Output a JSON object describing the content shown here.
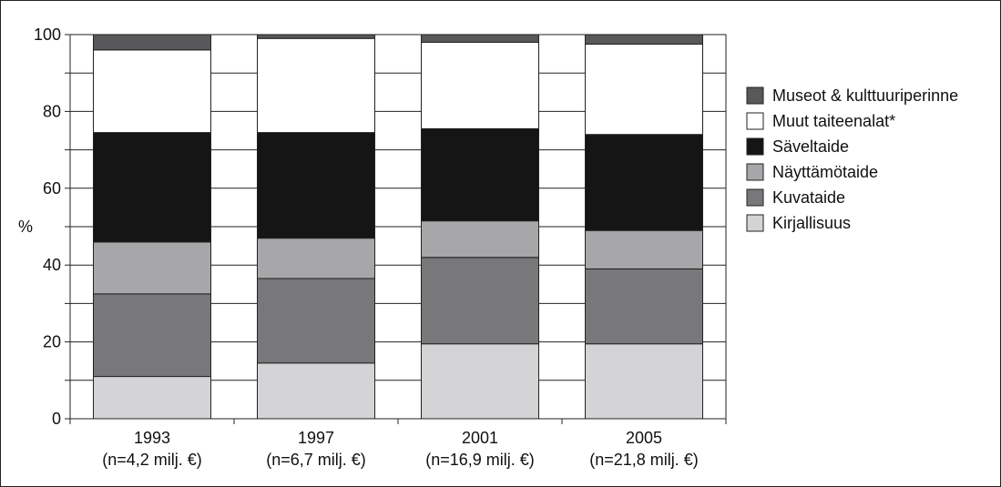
{
  "chart_data": {
    "type": "bar",
    "stacked": true,
    "ylabel": "%",
    "ylim": [
      0,
      100
    ],
    "yticks": [
      0,
      20,
      40,
      60,
      80,
      100
    ],
    "grid": true,
    "legend_position": "right",
    "categories": [
      {
        "label": "1993",
        "sublabel": "(n=4,2 milj. €)"
      },
      {
        "label": "1997",
        "sublabel": "(n=6,7 milj. €)"
      },
      {
        "label": "2001",
        "sublabel": "(n=16,9 milj. €)"
      },
      {
        "label": "2005",
        "sublabel": "(n=21,8 milj. €)"
      }
    ],
    "series": [
      {
        "name": "Kirjallisuus",
        "color": "#d4d4d6",
        "values": [
          11,
          14.5,
          19.5,
          19.5
        ]
      },
      {
        "name": "Kuvataide",
        "color": "#78787a",
        "values": [
          21.5,
          22,
          22.5,
          19.5
        ]
      },
      {
        "name": "Näyttämötaide",
        "color": "#a7a7a9",
        "values": [
          13.5,
          10.5,
          9.5,
          10
        ]
      },
      {
        "name": "Säveltaide",
        "color": "#151515",
        "values": [
          28.5,
          27.5,
          24,
          25
        ]
      },
      {
        "name": "Muut taiteenalat*",
        "color": "#ffffff",
        "values": [
          21.5,
          24.5,
          22.5,
          23.5
        ]
      },
      {
        "name": "Museot & kulttuuriperinne",
        "color": "#58585a",
        "values": [
          4,
          1,
          2,
          2.5
        ]
      }
    ],
    "legend_order": [
      "Museot & kulttuuriperinne",
      "Muut taiteenalat*",
      "Säveltaide",
      "Näyttämötaide",
      "Kuvataide",
      "Kirjallisuus"
    ]
  }
}
